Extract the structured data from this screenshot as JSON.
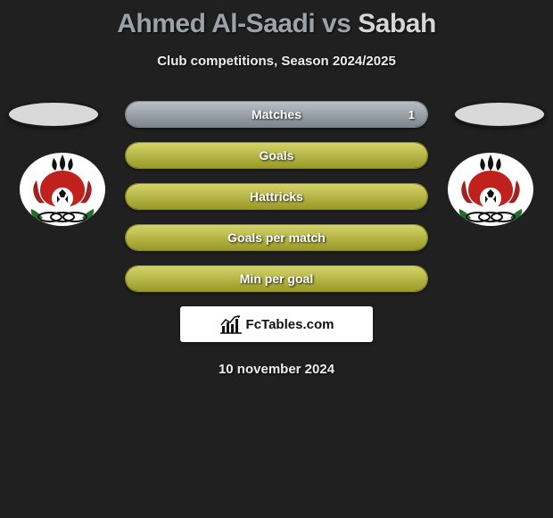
{
  "title": {
    "player1": "Ahmed Al-Saadi",
    "vs": "vs",
    "player2": "Sabah"
  },
  "subtitle": "Club competitions, Season 2024/2025",
  "colors": {
    "player1_accent": "#9ba2a8",
    "player2_accent": "#d6d6d6",
    "bar_border_gray": "#828a90",
    "bar_fill_gray_top": "#b9c0c5",
    "bar_fill_gray_bottom": "#7c858d",
    "bar_border_olive": "#8a8a22",
    "bar_fill_olive_top": "#d3d36a",
    "bar_fill_olive_bottom": "#9a9a27",
    "page_bg": "#202020",
    "text_light": "#ededed"
  },
  "stats": [
    {
      "label": "Matches",
      "variant": "gray",
      "fill_pct": 100,
      "value_right": "1"
    },
    {
      "label": "Goals",
      "variant": "olive",
      "fill_pct": 100,
      "value_right": ""
    },
    {
      "label": "Hattricks",
      "variant": "olive",
      "fill_pct": 100,
      "value_right": ""
    },
    {
      "label": "Goals per match",
      "variant": "olive",
      "fill_pct": 100,
      "value_right": ""
    },
    {
      "label": "Min per goal",
      "variant": "olive",
      "fill_pct": 100,
      "value_right": ""
    }
  ],
  "brand": "FcTables.com",
  "date": "10 november 2024",
  "logo": {
    "bg": "#ffffff",
    "flame": "#101010",
    "red_body": "#c0211d",
    "red_side": "#9c2420",
    "leaf_green": "#1f6f2a",
    "ring": "#0f0f0f",
    "ball_white": "#ffffff"
  }
}
